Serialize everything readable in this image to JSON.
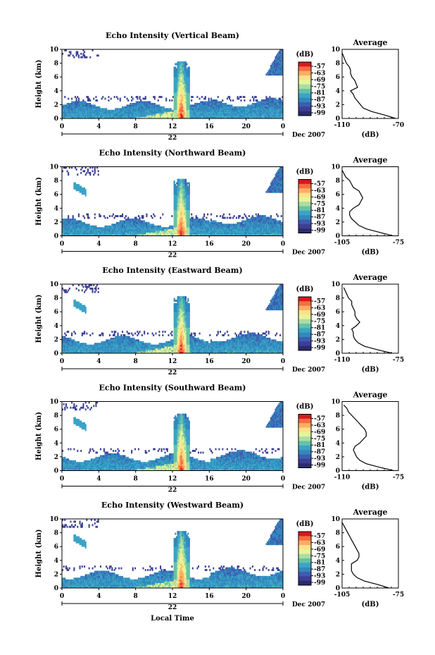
{
  "chart_data": [
    {
      "type": "heatmap",
      "title": "Echo Intensity (Vertical Beam)",
      "ylabel": "Height (km)",
      "ylim": [
        0,
        10
      ],
      "yticks": [
        "0",
        "2",
        "4",
        "6",
        "8",
        "10"
      ],
      "xlim": [
        0,
        24
      ],
      "xticks": [
        "0",
        "4",
        "8",
        "12",
        "16",
        "20",
        "0"
      ],
      "day_label": "22",
      "date_label": "Dec 2007",
      "colorbar": {
        "unit": "(dB)",
        "ticks": [
          "-57",
          "-63",
          "-69",
          "-75",
          "-81",
          "-87",
          "-93",
          "-99"
        ]
      },
      "profile": {
        "title": "Average",
        "xlabel": "(dB)",
        "xlim": [
          -110,
          -70
        ],
        "xticks": [
          "-110",
          "-70"
        ],
        "height_km": [
          0,
          0.5,
          1,
          1.5,
          2,
          2.5,
          3,
          3.5,
          4,
          4.5,
          5,
          5.5,
          6,
          6.5,
          7,
          7.5,
          8,
          8.5,
          9,
          9.5
        ],
        "db": [
          -72,
          -80,
          -89,
          -95,
          -97,
          -99,
          -101,
          -102,
          -104,
          -99,
          -100,
          -101,
          -103,
          -104,
          -104,
          -105,
          -107,
          -108,
          -109,
          -110
        ]
      }
    },
    {
      "type": "heatmap",
      "title": "Echo Intensity (Northward Beam)",
      "ylabel": "Height (km)",
      "ylim": [
        0,
        10
      ],
      "yticks": [
        "0",
        "2",
        "4",
        "6",
        "8",
        "10"
      ],
      "xlim": [
        0,
        24
      ],
      "xticks": [
        "0",
        "4",
        "8",
        "12",
        "16",
        "20",
        "0"
      ],
      "day_label": "22",
      "date_label": "Dec 2007",
      "colorbar": {
        "unit": "(dB)",
        "ticks": [
          "-57",
          "-63",
          "-69",
          "-75",
          "-81",
          "-87",
          "-93",
          "-99"
        ]
      },
      "profile": {
        "title": "Average",
        "xlabel": "(dB)",
        "xlim": [
          -105,
          -75
        ],
        "xticks": [
          "-105",
          "-75"
        ],
        "height_km": [
          0,
          0.5,
          1,
          1.5,
          2,
          2.5,
          3,
          3.5,
          4,
          4.5,
          5,
          5.5,
          6,
          6.5,
          7,
          7.5,
          8,
          8.5,
          9,
          9.5
        ],
        "db": [
          -78,
          -85,
          -92,
          -96,
          -98,
          -100,
          -101,
          -101,
          -99,
          -96,
          -95,
          -94,
          -95,
          -96,
          -99,
          -100,
          -101,
          -103,
          -104,
          -105
        ]
      }
    },
    {
      "type": "heatmap",
      "title": "Echo Intensity (Eastward Beam)",
      "ylabel": "Height (km)",
      "ylim": [
        0,
        10
      ],
      "yticks": [
        "0",
        "2",
        "4",
        "6",
        "8",
        "10"
      ],
      "xlim": [
        0,
        24
      ],
      "xticks": [
        "0",
        "4",
        "8",
        "12",
        "16",
        "20",
        "0"
      ],
      "day_label": "22",
      "date_label": "Dec 2007",
      "colorbar": {
        "unit": "(dB)",
        "ticks": [
          "-57",
          "-63",
          "-69",
          "-75",
          "-81",
          "-87",
          "-93",
          "-99"
        ]
      },
      "profile": {
        "title": "Average",
        "xlabel": "(dB)",
        "xlim": [
          -110,
          -75
        ],
        "xticks": [
          "-110",
          "-75"
        ],
        "height_km": [
          0,
          0.5,
          1,
          1.5,
          2,
          2.5,
          3,
          3.5,
          4,
          4.5,
          5,
          5.5,
          6,
          6.5,
          7,
          7.5,
          8,
          8.5,
          9,
          9.5
        ],
        "db": [
          -79,
          -88,
          -96,
          -100,
          -102,
          -103,
          -103,
          -104,
          -101,
          -99,
          -101,
          -102,
          -102,
          -103,
          -104,
          -104,
          -106,
          -107,
          -108,
          -109
        ]
      }
    },
    {
      "type": "heatmap",
      "title": "Echo Intensity (Southward Beam)",
      "ylabel": "Height (km)",
      "ylim": [
        0,
        10
      ],
      "yticks": [
        "0",
        "2",
        "4",
        "6",
        "8",
        "10"
      ],
      "xlim": [
        0,
        24
      ],
      "xticks": [
        "0",
        "4",
        "8",
        "12",
        "16",
        "20",
        "0"
      ],
      "day_label": "22",
      "date_label": "Dec 2007",
      "colorbar": {
        "unit": "(dB)",
        "ticks": [
          "-57",
          "-63",
          "-69",
          "-75",
          "-81",
          "-87",
          "-93",
          "-99"
        ]
      },
      "profile": {
        "title": "Average",
        "xlabel": "(dB)",
        "xlim": [
          -110,
          -75
        ],
        "xticks": [
          "-110",
          "-75"
        ],
        "height_km": [
          0,
          0.5,
          1,
          1.5,
          2,
          2.5,
          3,
          3.5,
          4,
          4.5,
          5,
          5.5,
          6,
          6.5,
          7,
          7.5,
          8,
          8.5,
          9,
          9.5
        ],
        "db": [
          -78,
          -87,
          -95,
          -99,
          -101,
          -102,
          -103,
          -102,
          -99,
          -97,
          -95,
          -95,
          -96,
          -98,
          -100,
          -102,
          -104,
          -106,
          -107,
          -109
        ]
      }
    },
    {
      "type": "heatmap",
      "title": "Echo Intensity (Westward Beam)",
      "ylabel": "Height (km)",
      "ylim": [
        0,
        10
      ],
      "yticks": [
        "0",
        "2",
        "4",
        "6",
        "8",
        "10"
      ],
      "xlim": [
        0,
        24
      ],
      "xticks": [
        "0",
        "4",
        "8",
        "12",
        "16",
        "20",
        "0"
      ],
      "day_label": "22",
      "date_label": "Dec 2007",
      "xlabel": "Local Time",
      "colorbar": {
        "unit": "(dB)",
        "ticks": [
          "-57",
          "-63",
          "-69",
          "-75",
          "-81",
          "-87",
          "-93",
          "-99"
        ]
      },
      "profile": {
        "title": "Average",
        "xlabel": "(dB)",
        "xlim": [
          -105,
          -75
        ],
        "xticks": [
          "-105",
          "-75"
        ],
        "height_km": [
          0,
          0.5,
          1,
          1.5,
          2,
          2.5,
          3,
          3.5,
          4,
          4.5,
          5,
          5.5,
          6,
          6.5,
          7,
          7.5,
          8,
          8.5,
          9,
          9.5
        ],
        "db": [
          -80,
          -86,
          -93,
          -97,
          -99,
          -100,
          -100,
          -100,
          -97,
          -96,
          -96,
          -97,
          -98,
          -99,
          -100,
          -101,
          -102,
          -103,
          -104,
          -105
        ]
      }
    }
  ],
  "colors": {
    "scale": [
      "#d7191c",
      "#f46d43",
      "#fdae61",
      "#fee08b",
      "#e6f598",
      "#abdda4",
      "#66c2a5",
      "#3ba3c7",
      "#3288bd",
      "#3f5cb0",
      "#3b3f95",
      "#2b2a6e"
    ],
    "background": "#ffffff"
  }
}
